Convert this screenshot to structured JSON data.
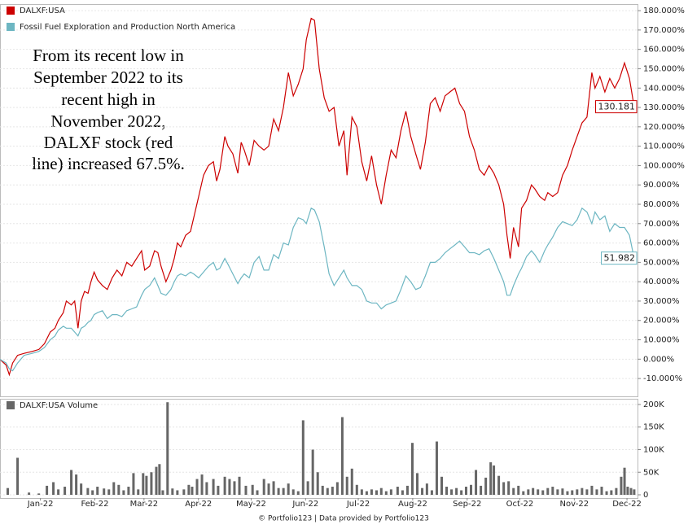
{
  "chart_data": [
    {
      "type": "line",
      "annotation": [
        "From its recent low in",
        "September 2022 to its",
        "recent high in",
        "November 2022,",
        "DALXF stock (red",
        "line) increased 67.5%."
      ],
      "legend": "top-left",
      "grid": true,
      "xlim": [
        -13,
        350
      ],
      "ylim": [
        -19.2,
        183.4
      ],
      "yticks": [
        {
          "value": -10,
          "label": "-10.000%"
        },
        {
          "value": 0,
          "label": "0.000%"
        },
        {
          "value": 10,
          "label": "10.000%"
        },
        {
          "value": 20,
          "label": "20.000%"
        },
        {
          "value": 30,
          "label": "30.000%"
        },
        {
          "value": 40,
          "label": "40.000%"
        },
        {
          "value": 50,
          "label": "50.000%"
        },
        {
          "value": 60,
          "label": "60.000%"
        },
        {
          "value": 70,
          "label": "70.000%"
        },
        {
          "value": 80,
          "label": "80.000%"
        },
        {
          "value": 90,
          "label": "90.000%"
        },
        {
          "value": 100,
          "label": "100.000%"
        },
        {
          "value": 110,
          "label": "110.000%"
        },
        {
          "value": 120,
          "label": "120.000%"
        },
        {
          "value": 130,
          "label": "130.000%"
        },
        {
          "value": 140,
          "label": "140.000%"
        },
        {
          "value": 150,
          "label": "150.000%"
        },
        {
          "value": 160,
          "label": "160.000%"
        },
        {
          "value": 170,
          "label": "170.000%"
        },
        {
          "value": 180,
          "label": "180.000%"
        }
      ],
      "x": [
        -13.2,
        -9.5,
        -7.7,
        -5.8,
        -3.0,
        0.7,
        5.3,
        9.1,
        12.3,
        15.6,
        18.3,
        20.2,
        23.0,
        24.8,
        27.6,
        29.5,
        31.4,
        33.2,
        35.1,
        37.1,
        38.8,
        40.6,
        42.5,
        45.3,
        48.1,
        50.9,
        53.6,
        56.4,
        59.2,
        62.0,
        64.8,
        67.6,
        69.4,
        72.2,
        75.0,
        76.9,
        78.7,
        81.5,
        84.3,
        86.2,
        88.0,
        89.9,
        92.7,
        95.5,
        97.3,
        100.1,
        102.9,
        105.7,
        108.5,
        110.3,
        112.2,
        115.0,
        116.8,
        119.6,
        122.4,
        124.3,
        126.1,
        128.9,
        131.7,
        134.5,
        137.3,
        140.0,
        142.8,
        145.6,
        148.4,
        151.2,
        154.0,
        156.8,
        159.6,
        161.4,
        164.2,
        166.1,
        168.8,
        171.6,
        174.4,
        177.2,
        180.0,
        182.8,
        184.6,
        187.4,
        190.2,
        193.0,
        195.8,
        198.6,
        201.4,
        204.1,
        206.9,
        209.7,
        212.5,
        215.3,
        218.1,
        220.9,
        223.7,
        226.4,
        229.2,
        232.0,
        234.8,
        237.6,
        240.4,
        243.2,
        246.0,
        248.7,
        251.5,
        254.3,
        257.1,
        259.9,
        262.7,
        265.5,
        268.2,
        271.0,
        273.8,
        275.7,
        277.5,
        279.4,
        282.2,
        284.0,
        286.8,
        289.6,
        291.5,
        294.3,
        297.1,
        298.9,
        301.7,
        304.5,
        307.3,
        310.1,
        312.8,
        315.6,
        318.4,
        321.2,
        324.0,
        325.8,
        328.6,
        331.4,
        334.2,
        337.0,
        339.8,
        342.6,
        345.4,
        348.1
      ],
      "series": [
        {
          "name": "DALXF:USA",
          "color": "#cc0000",
          "values": [
            0,
            -3,
            -8,
            -2,
            2,
            3,
            4,
            5,
            8,
            14,
            16,
            20,
            24,
            30,
            28,
            30,
            16,
            30,
            35,
            34,
            40,
            45,
            41,
            38,
            36,
            42,
            46,
            43,
            50,
            48,
            52,
            56,
            46,
            48,
            56,
            55,
            48,
            40,
            46,
            52,
            60,
            58,
            64,
            66,
            73,
            84,
            95,
            100,
            102,
            92,
            98,
            115,
            110,
            106,
            96,
            112,
            108,
            100,
            113,
            110,
            108,
            110,
            124,
            118,
            130,
            148,
            136,
            142,
            150,
            165,
            176,
            175,
            150,
            135,
            128,
            130,
            110,
            118,
            95,
            125,
            120,
            102,
            92,
            105,
            90,
            80,
            95,
            108,
            104,
            118,
            128,
            115,
            106,
            98,
            112,
            132,
            135,
            128,
            136,
            138,
            140,
            132,
            128,
            115,
            108,
            98,
            95,
            100,
            96,
            90,
            80,
            64,
            52,
            68,
            58,
            78,
            82,
            90,
            88,
            84,
            82,
            86,
            84,
            86,
            95,
            100,
            108,
            115,
            122,
            125,
            148,
            140,
            146,
            138,
            145,
            140,
            145,
            153,
            145,
            130.181
          ]
        },
        {
          "name": "Fossil Fuel Exploration and Production North America",
          "color": "#6db6c2",
          "values": [
            0,
            -2,
            -5,
            -6,
            -2,
            2,
            3,
            4,
            6,
            10,
            12,
            15,
            17,
            16,
            16,
            14,
            12,
            16,
            17,
            19,
            20,
            23,
            24,
            25,
            21,
            23,
            23,
            22,
            25,
            26,
            27,
            33,
            36,
            38,
            42,
            38,
            34,
            33,
            36,
            40,
            43,
            44,
            43,
            45,
            44,
            42,
            45,
            48,
            50,
            46,
            47,
            52,
            49,
            44,
            39,
            42,
            44,
            42,
            50,
            53,
            46,
            46,
            54,
            52,
            60,
            59,
            68,
            73,
            72,
            70,
            78,
            77,
            71,
            58,
            44,
            38,
            42,
            46,
            42,
            38,
            38,
            36,
            30,
            29,
            29,
            26,
            28,
            29,
            30,
            36,
            43,
            40,
            36,
            37,
            43,
            50,
            50,
            52,
            55,
            57,
            59,
            61,
            58,
            55,
            55,
            54,
            56,
            57,
            52,
            46,
            40,
            33,
            33,
            38,
            44,
            47,
            53,
            56,
            54,
            50,
            56,
            59,
            63,
            68,
            71,
            70,
            69,
            72,
            78,
            76,
            70,
            76,
            72,
            74,
            66,
            70,
            68,
            68,
            64,
            51.982
          ]
        }
      ]
    },
    {
      "type": "bar",
      "legend": "top-left",
      "grid": true,
      "xlim": [
        -13,
        350
      ],
      "ylim": [
        -7200,
        212600
      ],
      "yticks": [
        0,
        {
          "value": 50000,
          "label": "50K"
        },
        {
          "value": 100000,
          "label": "100K"
        },
        {
          "value": 150000,
          "label": "150K"
        },
        {
          "value": 200000,
          "label": "200K"
        }
      ],
      "xticks": [
        {
          "value": 10,
          "label": "Jan-22"
        },
        {
          "value": 41,
          "label": "Feb-22"
        },
        {
          "value": 69,
          "label": "Mar-22"
        },
        {
          "value": 100,
          "label": "Apr-22"
        },
        {
          "value": 130,
          "label": "May-22"
        },
        {
          "value": 161,
          "label": "Jun-22"
        },
        {
          "value": 191,
          "label": "Jul-22"
        },
        {
          "value": 222,
          "label": "Aug-22"
        },
        {
          "value": 253,
          "label": "Sep-22"
        },
        {
          "value": 283,
          "label": "Oct-22"
        },
        {
          "value": 314,
          "label": "Nov-22"
        },
        {
          "value": 344,
          "label": "Dec-22"
        }
      ],
      "footer": "© Portfolio123 | Data provided by Portfolio123",
      "x": [
        -8.6,
        -3.0,
        3.5,
        9.1,
        13.7,
        17.4,
        20.2,
        23.9,
        27.6,
        30.4,
        33.2,
        37.0,
        39.7,
        42.5,
        46.2,
        49.0,
        51.8,
        54.6,
        57.4,
        60.2,
        63.0,
        65.7,
        68.5,
        70.4,
        73.2,
        76.0,
        77.8,
        79.7,
        82.4,
        85.2,
        88.0,
        91.7,
        94.5,
        96.4,
        99.2,
        102.0,
        104.7,
        108.5,
        111.2,
        115.0,
        117.7,
        120.5,
        123.3,
        127.0,
        130.8,
        133.5,
        137.3,
        140.0,
        142.8,
        145.6,
        148.4,
        151.2,
        154.0,
        156.8,
        159.6,
        162.3,
        165.1,
        167.9,
        170.7,
        173.5,
        176.3,
        179.1,
        181.9,
        184.6,
        187.4,
        190.2,
        193.0,
        195.8,
        198.6,
        201.4,
        204.1,
        206.9,
        209.7,
        213.4,
        216.2,
        219.0,
        221.8,
        224.6,
        227.4,
        230.1,
        232.9,
        235.7,
        238.5,
        241.3,
        244.1,
        246.9,
        249.7,
        252.4,
        255.2,
        258.0,
        260.8,
        263.6,
        266.4,
        268.2,
        271.0,
        273.8,
        276.6,
        279.4,
        282.2,
        285.0,
        287.8,
        290.5,
        293.3,
        296.1,
        298.9,
        301.7,
        304.5,
        307.3,
        310.1,
        312.8,
        315.6,
        318.4,
        321.2,
        324.0,
        326.8,
        329.6,
        332.4,
        335.1,
        337.9,
        340.7,
        342.6,
        344.4,
        346.3,
        348.1
      ],
      "series": [
        {
          "name": "DALXF:USA Volume",
          "color": "#666666",
          "values": [
            15000,
            82000,
            5000,
            3000,
            20000,
            28000,
            12000,
            18000,
            55000,
            45000,
            25000,
            15000,
            10000,
            18000,
            14000,
            12000,
            28000,
            22000,
            10000,
            18000,
            48000,
            12000,
            48000,
            42000,
            50000,
            62000,
            68000,
            10000,
            205000,
            14000,
            10000,
            12000,
            22000,
            18000,
            35000,
            45000,
            28000,
            35000,
            20000,
            40000,
            35000,
            30000,
            40000,
            20000,
            22000,
            10000,
            35000,
            25000,
            30000,
            15000,
            15000,
            25000,
            12000,
            8000,
            165000,
            30000,
            100000,
            50000,
            20000,
            15000,
            18000,
            28000,
            172000,
            40000,
            58000,
            22000,
            12000,
            8000,
            12000,
            10000,
            15000,
            8000,
            12000,
            18000,
            10000,
            20000,
            115000,
            48000,
            15000,
            25000,
            10000,
            118000,
            40000,
            18000,
            12000,
            15000,
            10000,
            18000,
            22000,
            55000,
            20000,
            38000,
            72000,
            65000,
            42000,
            28000,
            30000,
            15000,
            20000,
            8000,
            12000,
            15000,
            12000,
            10000,
            15000,
            18000,
            12000,
            14000,
            8000,
            10000,
            12000,
            15000,
            12000,
            20000,
            12000,
            18000,
            8000,
            10000,
            15000,
            40000,
            60000,
            18000,
            15000,
            12000
          ]
        }
      ]
    }
  ]
}
